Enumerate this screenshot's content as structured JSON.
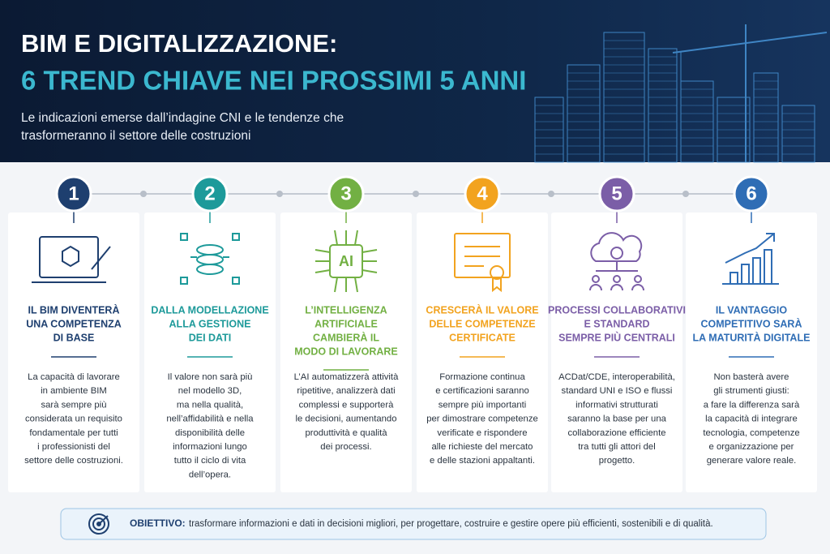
{
  "header": {
    "title_line1": "BIM E DIGITALIZZAZIONE:",
    "title_line2": "6 TREND CHIAVE NEI PROSSIMI 5 ANNI",
    "subtitle_lines": [
      "Le indicazioni emerse dall’indagine CNI e le tendenze che",
      "trasformeranno il settore delle costruzioni"
    ]
  },
  "trends": [
    {
      "number": "1",
      "heading_lines": [
        "IL BIM DIVENTERÀ",
        "UNA COMPETENZA",
        "DI BASE"
      ],
      "body_lines": [
        "La capacità di lavorare",
        "in ambiente BIM",
        "sarà sempre più",
        "considerata un requisito",
        "fondamentale per tutti",
        "i professionisti del",
        "settore delle costruzioni."
      ]
    },
    {
      "number": "2",
      "heading_lines": [
        "DALLA MODELLAZIONE",
        "ALLA GESTIONE",
        "DEI DATI"
      ],
      "body_lines": [
        "Il valore non sarà più",
        "nel modello 3D,",
        "ma nella qualità,",
        "nell’affidabilità e nella",
        "disponibilità delle",
        "informazioni lungo",
        "tutto il ciclo di vita",
        "dell’opera."
      ]
    },
    {
      "number": "3",
      "icon_label": "AI",
      "heading_lines": [
        "L’INTELLIGENZA",
        "ARTIFICIALE",
        "CAMBIERÀ IL",
        "MODO DI LAVORARE"
      ],
      "body_lines": [
        "L’AI automatizzerà attività",
        "ripetitive, analizzerà dati",
        "complessi e supporterà",
        "le decisioni, aumentando",
        "produttività e qualità",
        "dei processi."
      ]
    },
    {
      "number": "4",
      "heading_lines": [
        "CRESCERÀ IL VALORE",
        "DELLE COMPETENZE",
        "CERTIFICATE"
      ],
      "body_lines": [
        "Formazione continua",
        "e certificazioni saranno",
        "sempre più importanti",
        "per dimostrare competenze",
        "verificate e rispondere",
        "alle richieste del mercato",
        "e delle stazioni appaltanti."
      ]
    },
    {
      "number": "5",
      "heading_lines": [
        "PROCESSI COLLABORATIVI",
        "E STANDARD",
        "SEMPRE PIÙ CENTRALI"
      ],
      "body_lines": [
        "ACDat/CDE, interoperabilità,",
        "standard UNI e ISO e flussi",
        "informativi strutturati",
        "saranno la base per una",
        "collaborazione efficiente",
        "tra tutti gli attori del",
        "progetto."
      ]
    },
    {
      "number": "6",
      "heading_lines": [
        "IL VANTAGGIO",
        "COMPETITIVO SARÀ",
        "LA MATURITÀ DIGITALE"
      ],
      "body_lines": [
        "Non basterà avere",
        "gli strumenti giusti:",
        "a fare la differenza sarà",
        "la capacità di integrare",
        "tecnologia, competenze",
        "e organizzazione per",
        "generare valore reale."
      ]
    }
  ],
  "objective": {
    "label": "OBIETTIVO:",
    "text": "trasformare informazioni e dati in decisioni migliori, per progettare, costruire e gestire opere più efficienti, sostenibili e di qualità."
  }
}
